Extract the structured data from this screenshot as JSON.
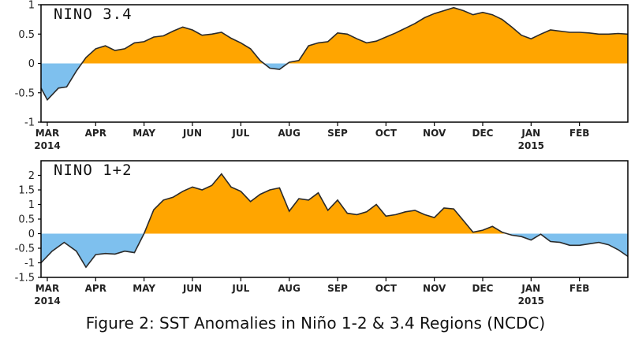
{
  "caption": "Figure 2: SST Anomalies in Niño 1-2 & 3.4 Regions (NCDC)",
  "colors": {
    "positive": "#FFA500",
    "negative": "#7EC0EE",
    "line": "#2a2a2a",
    "frame": "#000000"
  },
  "chart_data": [
    {
      "type": "area",
      "title": "NINO 3.4",
      "xlabel": "",
      "ylabel": "",
      "ylim": [
        -1,
        1
      ],
      "y_ticks": [
        1,
        0.5,
        0,
        -0.5,
        -1
      ],
      "y_tick_labels": [
        "1",
        "0.5",
        "0",
        "-0.5",
        "-1"
      ],
      "x_ticks": [
        {
          "month": 0,
          "label": "MAR",
          "year": "2014"
        },
        {
          "month": 1,
          "label": "APR"
        },
        {
          "month": 2,
          "label": "MAY"
        },
        {
          "month": 3,
          "label": "JUN"
        },
        {
          "month": 4,
          "label": "JUL"
        },
        {
          "month": 5,
          "label": "AUG"
        },
        {
          "month": 6,
          "label": "SEP"
        },
        {
          "month": 7,
          "label": "OCT"
        },
        {
          "month": 8,
          "label": "NOV"
        },
        {
          "month": 9,
          "label": "DEC"
        },
        {
          "month": 10,
          "label": "JAN",
          "year": "2015"
        },
        {
          "month": 11,
          "label": "FEB"
        }
      ],
      "x_range": [
        -0.13,
        12.0
      ],
      "x": [
        -0.13,
        0.0,
        0.23,
        0.4,
        0.6,
        0.8,
        1.0,
        1.2,
        1.4,
        1.6,
        1.8,
        2.0,
        2.2,
        2.4,
        2.6,
        2.8,
        3.0,
        3.2,
        3.4,
        3.6,
        3.8,
        4.0,
        4.2,
        4.4,
        4.6,
        4.8,
        5.0,
        5.2,
        5.4,
        5.6,
        5.8,
        6.0,
        6.2,
        6.4,
        6.6,
        6.8,
        7.0,
        7.2,
        7.4,
        7.6,
        7.8,
        8.0,
        8.2,
        8.4,
        8.6,
        8.8,
        9.0,
        9.2,
        9.4,
        9.6,
        9.8,
        10.0,
        10.2,
        10.4,
        10.6,
        10.8,
        11.0,
        11.2,
        11.4,
        11.6,
        11.8,
        12.0
      ],
      "values": [
        -0.42,
        -0.62,
        -0.42,
        -0.4,
        -0.13,
        0.1,
        0.25,
        0.3,
        0.22,
        0.25,
        0.35,
        0.37,
        0.45,
        0.47,
        0.55,
        0.62,
        0.57,
        0.48,
        0.5,
        0.53,
        0.43,
        0.35,
        0.25,
        0.05,
        -0.08,
        -0.1,
        0.02,
        0.05,
        0.3,
        0.35,
        0.37,
        0.52,
        0.5,
        0.42,
        0.35,
        0.38,
        0.45,
        0.52,
        0.6,
        0.68,
        0.78,
        0.85,
        0.9,
        0.95,
        0.9,
        0.83,
        0.87,
        0.83,
        0.75,
        0.62,
        0.48,
        0.42,
        0.5,
        0.57,
        0.55,
        0.53,
        0.53,
        0.52,
        0.5,
        0.5,
        0.51,
        0.5
      ]
    },
    {
      "type": "area",
      "title": "NINO 1+2",
      "xlabel": "",
      "ylabel": "",
      "ylim": [
        -1.5,
        2.5
      ],
      "y_ticks": [
        2,
        1.5,
        1,
        0.5,
        0,
        -0.5,
        -1,
        -1.5
      ],
      "y_tick_labels": [
        "2",
        "1.5",
        "1",
        "0.5",
        "0",
        "-0.5",
        "-1",
        "-1.5"
      ],
      "x_ticks": [
        {
          "month": 0,
          "label": "MAR",
          "year": "2014"
        },
        {
          "month": 1,
          "label": "APR"
        },
        {
          "month": 2,
          "label": "MAY"
        },
        {
          "month": 3,
          "label": "JUN"
        },
        {
          "month": 4,
          "label": "JUL"
        },
        {
          "month": 5,
          "label": "AUG"
        },
        {
          "month": 6,
          "label": "SEP"
        },
        {
          "month": 7,
          "label": "OCT"
        },
        {
          "month": 8,
          "label": "NOV"
        },
        {
          "month": 9,
          "label": "DEC"
        },
        {
          "month": 10,
          "label": "JAN",
          "year": "2015"
        },
        {
          "month": 11,
          "label": "FEB"
        }
      ],
      "x_range": [
        -0.13,
        12.0
      ],
      "x": [
        -0.13,
        0.1,
        0.35,
        0.6,
        0.8,
        1.0,
        1.2,
        1.4,
        1.6,
        1.8,
        2.0,
        2.2,
        2.4,
        2.6,
        2.8,
        3.0,
        3.2,
        3.4,
        3.6,
        3.8,
        4.0,
        4.2,
        4.4,
        4.6,
        4.8,
        5.0,
        5.2,
        5.4,
        5.6,
        5.8,
        6.0,
        6.2,
        6.4,
        6.6,
        6.8,
        7.0,
        7.2,
        7.4,
        7.6,
        7.8,
        8.0,
        8.2,
        8.4,
        8.6,
        8.8,
        9.0,
        9.2,
        9.4,
        9.6,
        9.8,
        10.0,
        10.2,
        10.4,
        10.6,
        10.8,
        11.0,
        11.2,
        11.4,
        11.6,
        11.8,
        12.0
      ],
      "values": [
        -1.0,
        -0.6,
        -0.3,
        -0.6,
        -1.15,
        -0.72,
        -0.68,
        -0.7,
        -0.6,
        -0.65,
        0.0,
        0.82,
        1.15,
        1.25,
        1.45,
        1.6,
        1.5,
        1.65,
        2.05,
        1.6,
        1.45,
        1.1,
        1.35,
        1.5,
        1.57,
        0.77,
        1.2,
        1.15,
        1.4,
        0.8,
        1.15,
        0.7,
        0.65,
        0.75,
        1.0,
        0.6,
        0.65,
        0.75,
        0.8,
        0.65,
        0.55,
        0.88,
        0.85,
        0.45,
        0.05,
        0.12,
        0.25,
        0.05,
        -0.05,
        -0.1,
        -0.22,
        -0.02,
        -0.27,
        -0.3,
        -0.4,
        -0.4,
        -0.35,
        -0.3,
        -0.38,
        -0.55,
        -0.78
      ]
    }
  ]
}
